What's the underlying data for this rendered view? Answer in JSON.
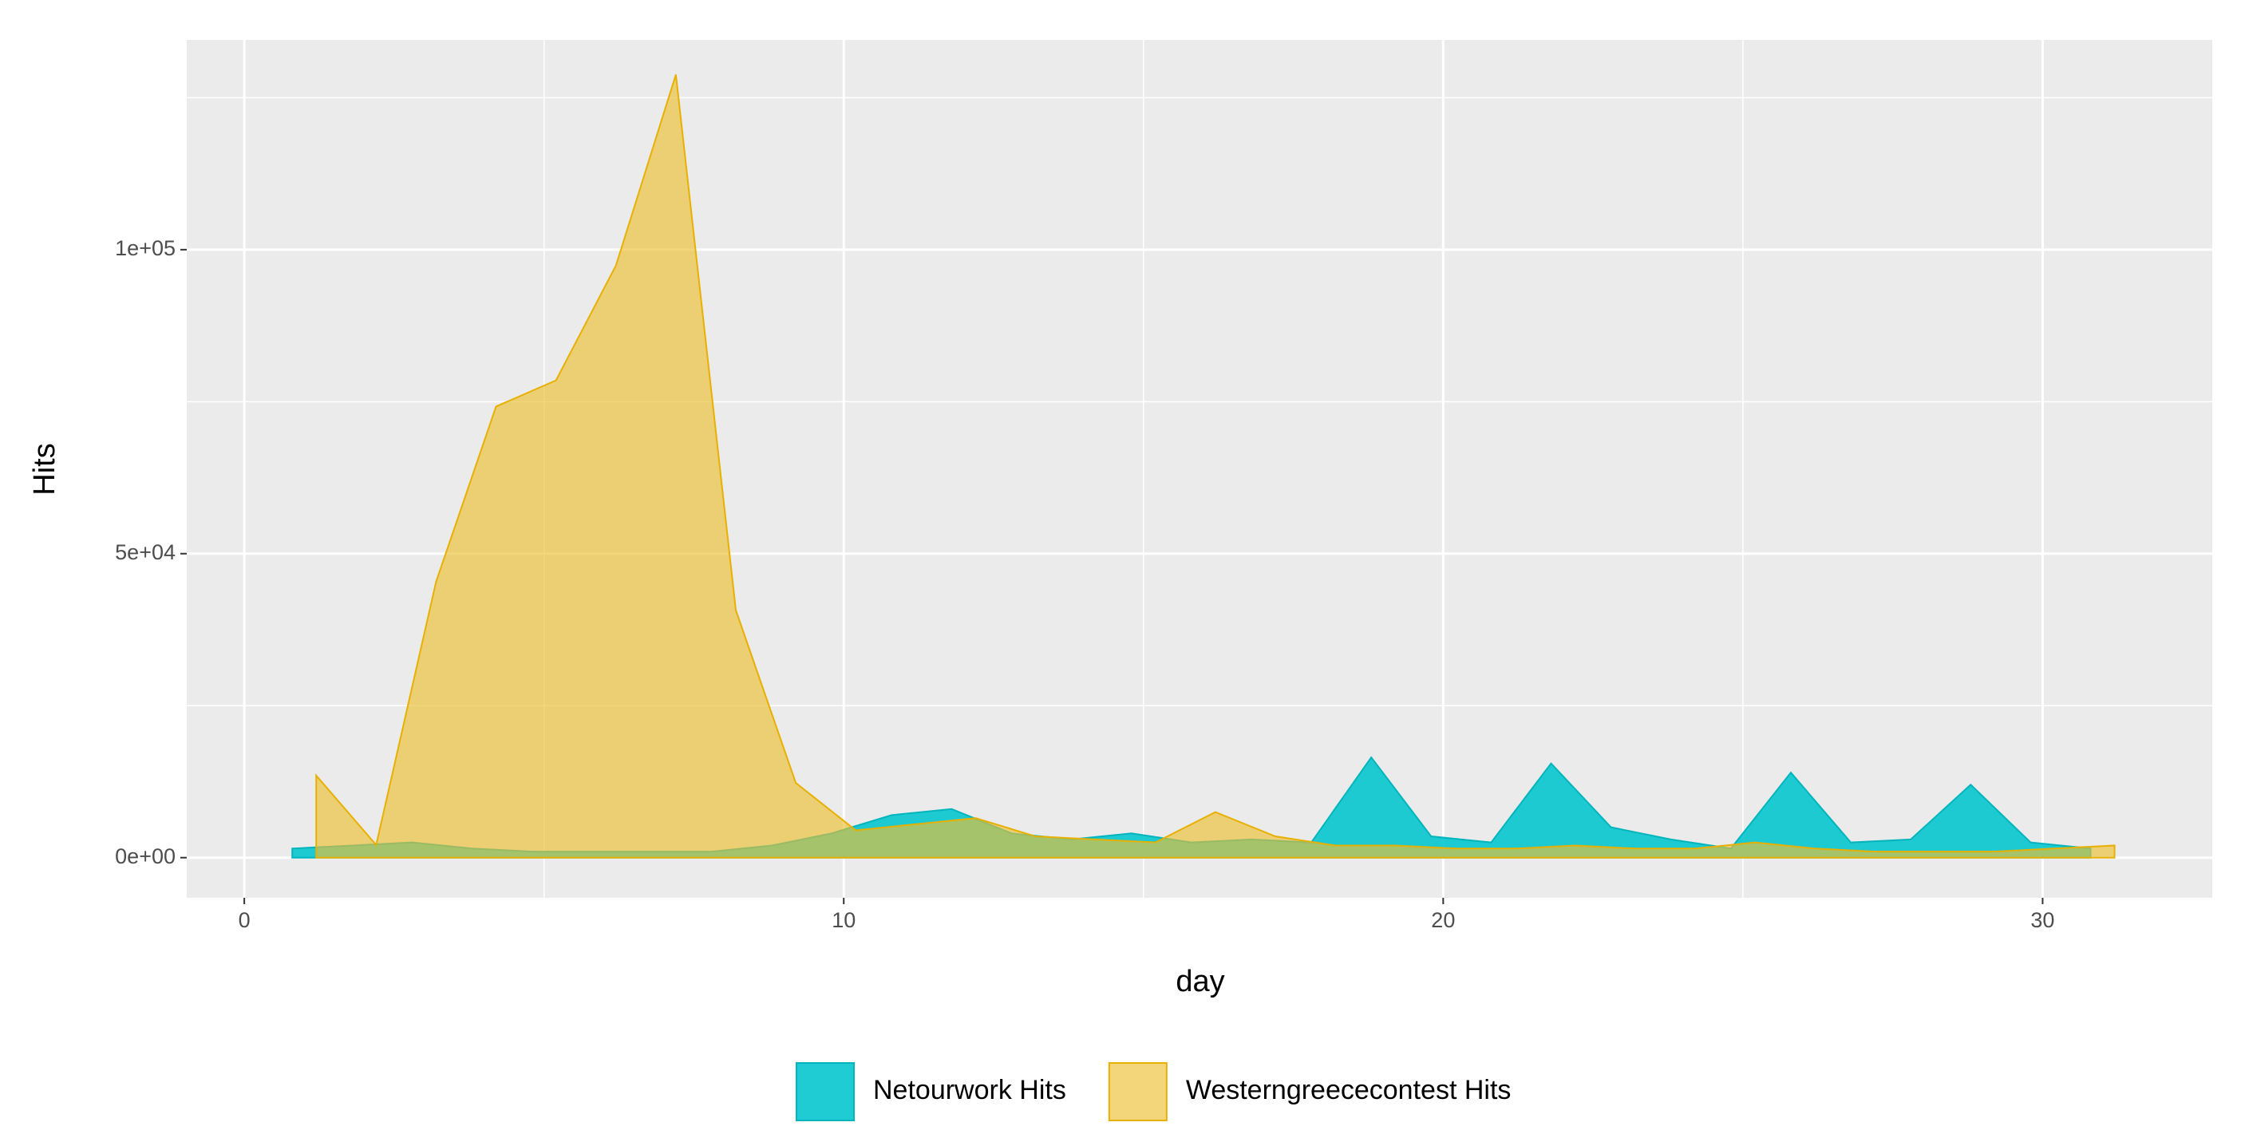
{
  "chart_data": {
    "type": "area",
    "x_label": "day",
    "y_label": "Hits",
    "xlim": [
      -0.96,
      32.83
    ],
    "ylim": [
      -6600,
      134500
    ],
    "xticks": [
      0,
      10,
      20,
      30
    ],
    "yticks": [
      {
        "value": 0,
        "label": "0e+00"
      },
      {
        "value": 50000,
        "label": "5e+04"
      },
      {
        "value": 100000,
        "label": "1e+05"
      }
    ],
    "grid": true,
    "legend": "bottom",
    "series": [
      {
        "name": "Netourwork Hits",
        "color": "#00C5CD",
        "stroke": "#00B5BD",
        "opacity": 0.88,
        "x": [
          0.8,
          1.8,
          2.8,
          3.8,
          4.8,
          5.8,
          6.8,
          7.8,
          8.8,
          9.8,
          10.8,
          11.8,
          12.8,
          13.8,
          14.8,
          15.8,
          16.8,
          17.8,
          18.8,
          19.8,
          20.8,
          21.8,
          22.8,
          23.8,
          24.8,
          25.8,
          26.8,
          27.8,
          28.8,
          29.8,
          30.8
        ],
        "values": [
          1500,
          2000,
          2500,
          1500,
          1000,
          1000,
          1000,
          1000,
          2000,
          4000,
          7000,
          8000,
          4000,
          3000,
          4000,
          2500,
          3000,
          2500,
          16500,
          3500,
          2500,
          15500,
          5000,
          3000,
          1500,
          14000,
          2500,
          3000,
          12000,
          2500,
          1500
        ]
      },
      {
        "name": "Westerngreececontest Hits",
        "color": "#EDBE33",
        "stroke": "#E8B000",
        "opacity": 0.65,
        "x": [
          1.2,
          2.2,
          3.2,
          4.2,
          5.2,
          6.2,
          7.2,
          8.2,
          9.2,
          10.2,
          11.2,
          12.2,
          13.2,
          14.2,
          15.2,
          16.2,
          17.2,
          18.2,
          19.2,
          20.2,
          21.2,
          22.2,
          23.2,
          24.2,
          25.2,
          26.2,
          27.2,
          28.2,
          29.2,
          30.2,
          31.2
        ],
        "values": [
          13500,
          2100,
          45400,
          74200,
          78500,
          97400,
          128800,
          40700,
          12300,
          4500,
          5500,
          6500,
          3500,
          3000,
          2500,
          7500,
          3500,
          2000,
          2000,
          1500,
          1500,
          2000,
          1500,
          1500,
          2500,
          1500,
          1000,
          1000,
          1000,
          1500,
          2000
        ]
      }
    ]
  }
}
